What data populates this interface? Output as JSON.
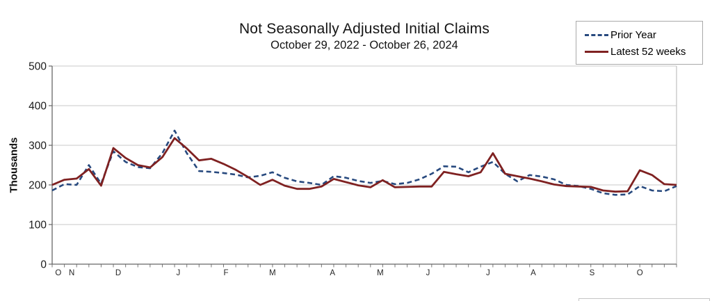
{
  "chart_data": {
    "type": "line",
    "title": "Not Seasonally Adjusted Initial Claims",
    "subtitle": "October 29, 2022 - October 26, 2024",
    "ylabel": "Thousands",
    "ylim": [
      0,
      500
    ],
    "yticks": [
      0,
      100,
      200,
      300,
      400,
      500
    ],
    "x_unit": "week",
    "n_points": 52,
    "grid": "horizontal",
    "legend_position": "top-right",
    "month_labels": [
      {
        "pos": 0.5,
        "label": "O"
      },
      {
        "pos": 1.6,
        "label": "N"
      },
      {
        "pos": 5.4,
        "label": "D"
      },
      {
        "pos": 10.3,
        "label": "J"
      },
      {
        "pos": 14.2,
        "label": "F"
      },
      {
        "pos": 18.0,
        "label": "M"
      },
      {
        "pos": 22.9,
        "label": "A"
      },
      {
        "pos": 26.8,
        "label": "M"
      },
      {
        "pos": 30.7,
        "label": "J"
      },
      {
        "pos": 35.6,
        "label": "J"
      },
      {
        "pos": 39.3,
        "label": "A"
      },
      {
        "pos": 44.1,
        "label": "S"
      },
      {
        "pos": 48.0,
        "label": "O"
      }
    ],
    "series": [
      {
        "name": "Prior Year",
        "style": "dashed",
        "color": "#27497e",
        "values": [
          186,
          202,
          200,
          250,
          203,
          285,
          258,
          245,
          242,
          280,
          337,
          280,
          235,
          233,
          230,
          226,
          219,
          223,
          232,
          218,
          209,
          205,
          200,
          222,
          218,
          210,
          205,
          210,
          202,
          205,
          214,
          228,
          247,
          246,
          232,
          246,
          258,
          228,
          209,
          225,
          221,
          214,
          200,
          197,
          190,
          179,
          175,
          176,
          197,
          186,
          184,
          197
        ]
      },
      {
        "name": "Latest 52 weeks",
        "style": "solid",
        "color": "#7f2121",
        "values": [
          200,
          213,
          216,
          240,
          198,
          293,
          268,
          250,
          244,
          270,
          318,
          292,
          262,
          266,
          253,
          238,
          220,
          200,
          213,
          198,
          190,
          190,
          196,
          215,
          207,
          199,
          194,
          212,
          194,
          195,
          196,
          196,
          233,
          227,
          222,
          232,
          280,
          228,
          222,
          216,
          209,
          201,
          197,
          196,
          195,
          186,
          183,
          184,
          237,
          225,
          202,
          200
        ]
      }
    ],
    "colors": {
      "grid": "#c9c9c9",
      "plot_border": "#c0c0c0",
      "axis": "#666666",
      "tick": "#777777",
      "y_tick_label": "#1a1a1a",
      "x_tick_label": "#262626"
    }
  }
}
